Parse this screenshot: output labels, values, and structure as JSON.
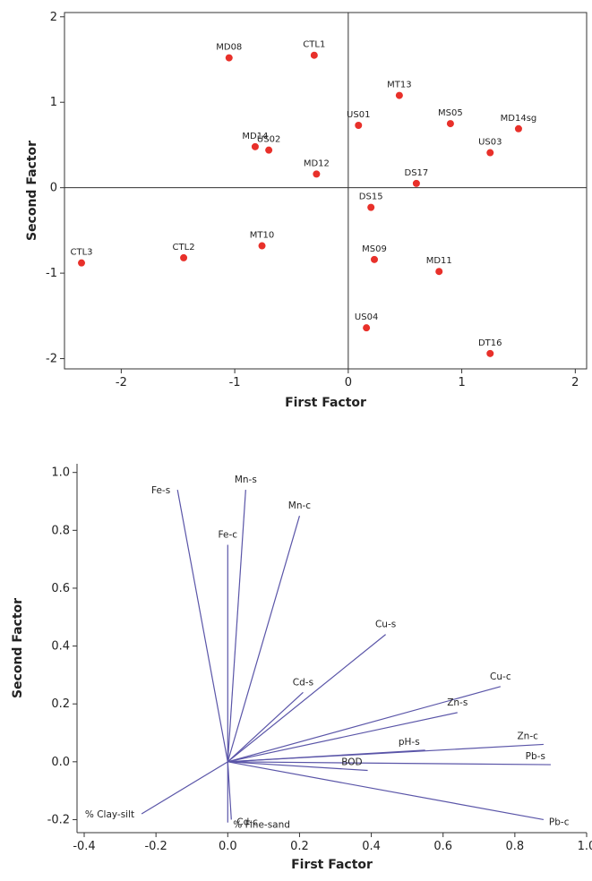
{
  "chart_data": [
    {
      "type": "scatter",
      "xlabel": "First Factor",
      "ylabel": "Second Factor",
      "xlim": [
        -2.5,
        2.1
      ],
      "ylim": [
        -2.12,
        2.05
      ],
      "xticks": [
        -2,
        -1,
        0,
        1,
        2
      ],
      "yticks": [
        -2,
        -1,
        0,
        1,
        2
      ],
      "reference_lines": {
        "x": 0,
        "y": 0
      },
      "point_color": "#e8302a",
      "points": [
        {
          "label": "MD08",
          "x": -1.05,
          "y": 1.52
        },
        {
          "label": "CTL1",
          "x": -0.3,
          "y": 1.55
        },
        {
          "label": "MT13",
          "x": 0.45,
          "y": 1.08
        },
        {
          "label": "US01",
          "x": 0.09,
          "y": 0.73
        },
        {
          "label": "MS05",
          "x": 0.9,
          "y": 0.75
        },
        {
          "label": "MD14sg",
          "x": 1.5,
          "y": 0.69
        },
        {
          "label": "MD14",
          "x": -0.82,
          "y": 0.48
        },
        {
          "label": "US02",
          "x": -0.7,
          "y": 0.44
        },
        {
          "label": "US03",
          "x": 1.25,
          "y": 0.41
        },
        {
          "label": "MD12",
          "x": -0.28,
          "y": 0.16
        },
        {
          "label": "DS17",
          "x": 0.6,
          "y": 0.05
        },
        {
          "label": "DS15",
          "x": 0.2,
          "y": -0.23
        },
        {
          "label": "CTL3",
          "x": -2.35,
          "y": -0.88
        },
        {
          "label": "CTL2",
          "x": -1.45,
          "y": -0.82
        },
        {
          "label": "MT10",
          "x": -0.76,
          "y": -0.68
        },
        {
          "label": "MS09",
          "x": 0.23,
          "y": -0.84
        },
        {
          "label": "MD11",
          "x": 0.8,
          "y": -0.98
        },
        {
          "label": "US04",
          "x": 0.16,
          "y": -1.64
        },
        {
          "label": "DT16",
          "x": 1.25,
          "y": -1.94
        }
      ]
    },
    {
      "type": "biplot",
      "xlabel": "First Factor",
      "ylabel": "Second Factor",
      "xlim": [
        -0.42,
        1.0
      ],
      "ylim": [
        -0.245,
        1.03
      ],
      "xticks": [
        -0.4,
        -0.2,
        0.0,
        0.2,
        0.4,
        0.6,
        0.8,
        1.0
      ],
      "xtick_labels": [
        "-0.4",
        "-0.2",
        "0.0",
        "0.2",
        "0.4",
        "0.6",
        "0.8",
        "1.0"
      ],
      "yticks": [
        -0.2,
        0.0,
        0.2,
        0.4,
        0.6,
        0.8,
        1.0
      ],
      "ytick_labels": [
        "-0.2",
        "0.0",
        "0.2",
        "0.4",
        "0.6",
        "0.8",
        "1.0"
      ],
      "vector_color": "#5a55a8",
      "vectors": [
        {
          "label": "Fe-s",
          "x": -0.14,
          "y": 0.94
        },
        {
          "label": "Mn-s",
          "x": 0.05,
          "y": 0.94
        },
        {
          "label": "Mn-c",
          "x": 0.2,
          "y": 0.85
        },
        {
          "label": "Fe-c",
          "x": 0.0,
          "y": 0.75
        },
        {
          "label": "Cu-s",
          "x": 0.44,
          "y": 0.44
        },
        {
          "label": "Cd-s",
          "x": 0.21,
          "y": 0.24
        },
        {
          "label": "Cu-c",
          "x": 0.76,
          "y": 0.26
        },
        {
          "label": "Zn-s",
          "x": 0.64,
          "y": 0.17
        },
        {
          "label": "Zn-c",
          "x": 0.88,
          "y": 0.06
        },
        {
          "label": "pH-s",
          "x": 0.55,
          "y": 0.04
        },
        {
          "label": "Pb-s",
          "x": 0.9,
          "y": -0.01
        },
        {
          "label": "BOD",
          "x": 0.39,
          "y": -0.03
        },
        {
          "label": "Pb-c",
          "x": 0.88,
          "y": -0.2
        },
        {
          "label": "% Clay-silt",
          "x": -0.24,
          "y": -0.18
        },
        {
          "label": "% Fine-sand",
          "x": 0.0,
          "y": -0.21
        },
        {
          "label": "Cd-c",
          "x": 0.01,
          "y": -0.2
        }
      ]
    }
  ]
}
